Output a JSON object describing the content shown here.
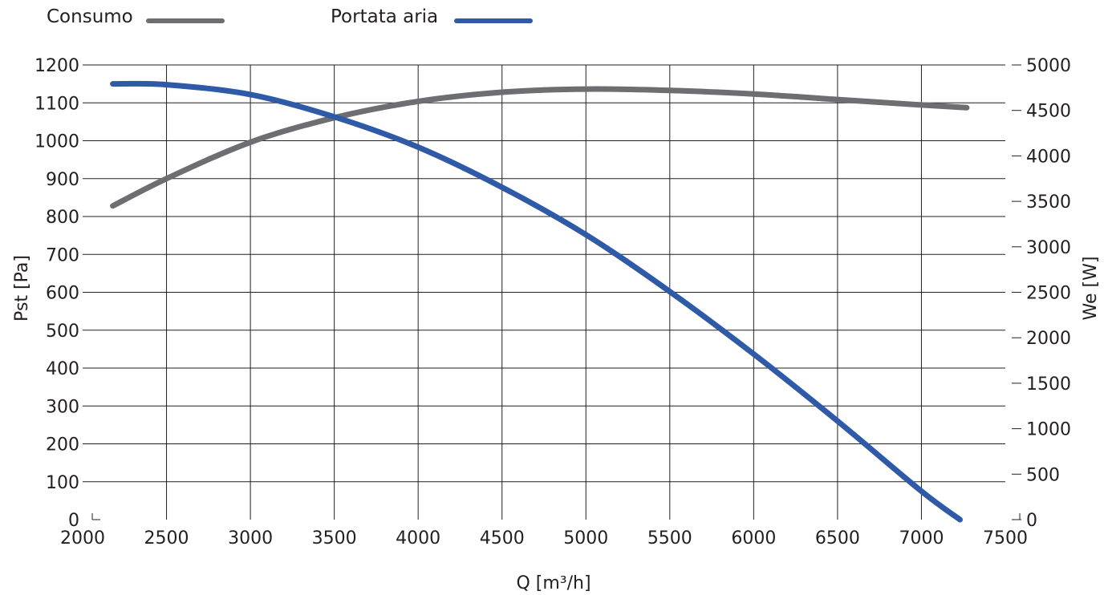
{
  "legend": {
    "consumo_label": "Consumo",
    "portata_label": "Portata aria"
  },
  "colors": {
    "consumo": "#6d6e71",
    "portata": "#2f5aa8",
    "grid": "#231f20"
  },
  "chart_data": {
    "type": "line",
    "xlabel": "Q [m³/h]",
    "ylabel": "Pst [Pa]",
    "y2label": "We [W]",
    "xlim": [
      2000,
      7500
    ],
    "ylim": [
      0,
      1200
    ],
    "y2lim": [
      0,
      5000
    ],
    "xticks": [
      2000,
      2500,
      3000,
      3500,
      4000,
      4500,
      5000,
      5500,
      6000,
      6500,
      7000,
      7500
    ],
    "yticks": [
      0,
      100,
      200,
      300,
      400,
      500,
      600,
      700,
      800,
      900,
      1000,
      1100,
      1200
    ],
    "y2ticks": [
      0,
      500,
      1000,
      1500,
      2000,
      2500,
      3000,
      3500,
      4000,
      4500,
      5000
    ],
    "grid": true,
    "legend_position": "top-left",
    "series": [
      {
        "name": "Consumo",
        "axis": "right",
        "x": [
          2180,
          2500,
          3000,
          3500,
          4000,
          4500,
          5000,
          5500,
          6000,
          6500,
          7000,
          7270
        ],
        "values": [
          3450,
          3750,
          4150,
          4420,
          4600,
          4700,
          4735,
          4720,
          4680,
          4620,
          4560,
          4530
        ]
      },
      {
        "name": "Portata aria",
        "axis": "left",
        "x": [
          2180,
          2500,
          3000,
          3500,
          4000,
          4500,
          5000,
          5500,
          6000,
          6500,
          7000,
          7230
        ],
        "values": [
          1150,
          1148,
          1122,
          1063,
          983,
          877,
          752,
          602,
          437,
          260,
          75,
          0
        ]
      }
    ]
  }
}
